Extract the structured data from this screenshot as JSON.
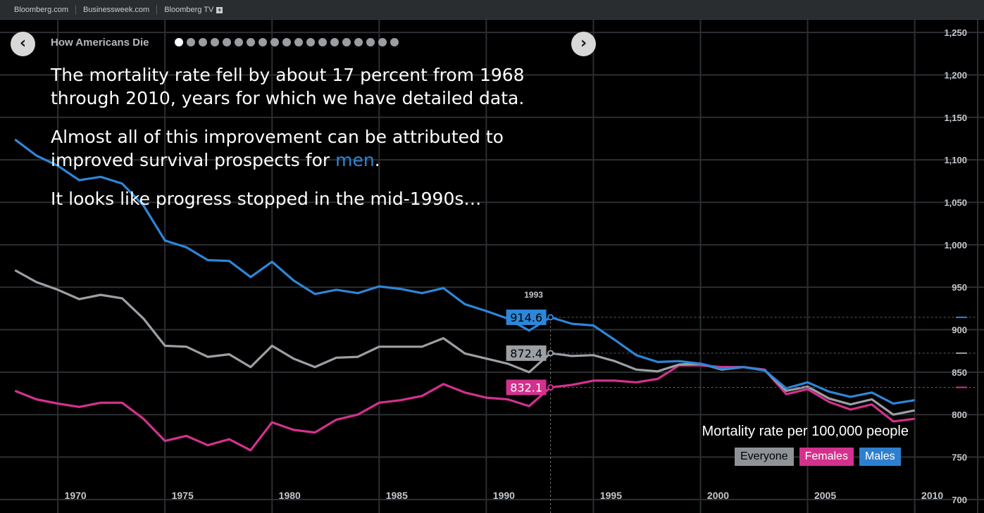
{
  "topbar": {
    "links": [
      "Bloomberg.com",
      "Businessweek.com",
      "Bloomberg TV"
    ]
  },
  "story": {
    "title": "How Americans Die",
    "slide_count": 19,
    "active_slide": 0,
    "paragraph1": "The mortality rate fell by about 17 percent from 1968 through 2010, years for which we have detailed data.",
    "paragraph2_before": "Almost all of this improvement can be attributed to improved survival prospects for ",
    "paragraph2_highlight": "men",
    "paragraph2_after": ".",
    "paragraph3": "It looks like progress stopped in the mid-1990s…"
  },
  "icons": {
    "prev": "chevron-left-icon",
    "next": "chevron-right-icon"
  },
  "legend": {
    "title": "Mortality rate per 100,000 people",
    "everyone": "Everyone",
    "females": "Females",
    "males": "Males"
  },
  "colors": {
    "everyone": "#9ca0a4",
    "females": "#d3318e",
    "males": "#2e86d8",
    "grid": "#2c2f33",
    "tick_text": "#c3c7cb"
  },
  "chart_data": {
    "type": "line",
    "x": [
      1968,
      1969,
      1970,
      1971,
      1972,
      1973,
      1974,
      1975,
      1976,
      1977,
      1978,
      1979,
      1980,
      1981,
      1982,
      1983,
      1984,
      1985,
      1986,
      1987,
      1988,
      1989,
      1990,
      1991,
      1992,
      1993,
      1994,
      1995,
      1996,
      1997,
      1998,
      1999,
      2000,
      2001,
      2002,
      2003,
      2004,
      2005,
      2006,
      2007,
      2008,
      2009,
      2010
    ],
    "series": [
      {
        "name": "Males",
        "values": [
          1124,
          1105,
          1093,
          1076,
          1080,
          1072,
          1046,
          1005,
          997,
          982,
          981,
          962,
          980,
          958,
          942,
          947,
          943,
          951,
          948,
          943,
          949,
          930,
          922,
          913,
          899,
          914.6,
          907,
          905,
          888,
          870,
          862,
          863,
          860,
          854,
          856,
          852,
          831,
          838,
          827,
          821,
          826,
          813,
          817
        ]
      },
      {
        "name": "Everyone",
        "values": [
          970,
          956,
          947,
          936,
          941,
          937,
          913,
          881,
          880,
          868,
          871,
          856,
          881,
          866,
          856,
          867,
          868,
          880,
          880,
          880,
          890,
          872,
          866,
          860,
          850,
          872.4,
          869,
          870,
          863,
          853,
          851,
          859,
          860,
          853,
          856,
          852,
          828,
          833,
          819,
          812,
          818,
          800,
          805
        ]
      },
      {
        "name": "Females",
        "values": [
          828,
          818,
          813,
          809,
          814,
          814,
          795,
          769,
          775,
          764,
          771,
          758,
          791,
          782,
          779,
          794,
          800,
          814,
          817,
          822,
          836,
          826,
          820,
          818,
          810,
          832.1,
          835,
          840,
          840,
          838,
          842,
          858,
          858,
          856,
          856,
          853,
          824,
          830,
          815,
          806,
          812,
          792,
          795
        ]
      }
    ],
    "highlight": {
      "year": "1993",
      "labels": {
        "males": "914.6",
        "everyone": "872.4",
        "females": "832.1"
      }
    },
    "xticks": [
      1970,
      1975,
      1980,
      1985,
      1990,
      1995,
      2000,
      2005,
      2010
    ],
    "yticks": [
      700,
      750,
      800,
      850,
      900,
      950,
      1000,
      1050,
      1100,
      1150,
      1200,
      1250
    ],
    "xlim": [
      1967.3,
      2010.9
    ],
    "ylim": [
      685,
      1265
    ],
    "grid": true,
    "legend": "bottom-right"
  }
}
